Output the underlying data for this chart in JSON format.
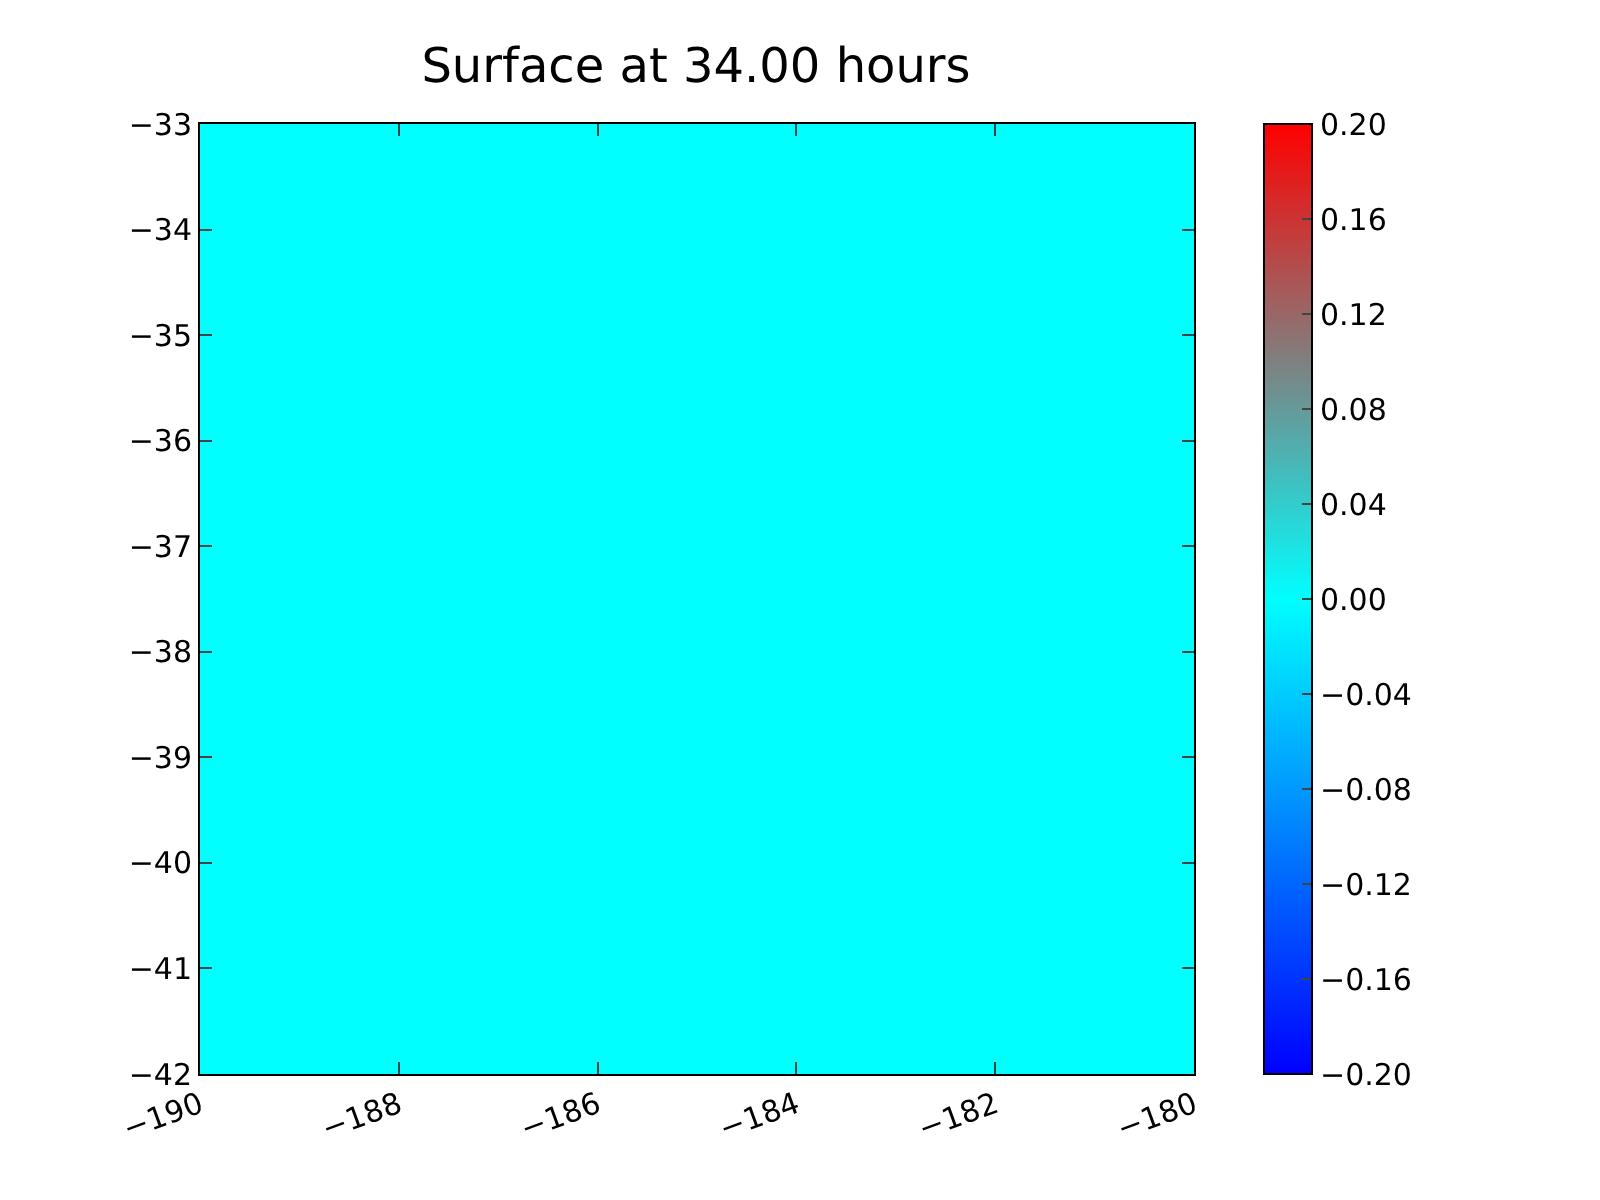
{
  "chart_data": {
    "type": "heatmap",
    "title": "Surface at 34.00 hours",
    "cells": [
      [
        0.0
      ]
    ],
    "xlim": [
      -190,
      -180
    ],
    "xticks": [
      -190,
      -188,
      -186,
      -184,
      -182,
      -180
    ],
    "ylim": [
      -42,
      -33
    ],
    "yticks": [
      -42,
      -41,
      -40,
      -39,
      -38,
      -37,
      -36,
      -35,
      -34,
      -33
    ],
    "clim": [
      -0.2,
      0.2
    ],
    "cticks": [
      {
        "value": -0.2,
        "label": "−0.20"
      },
      {
        "value": -0.16,
        "label": "−0.16"
      },
      {
        "value": -0.12,
        "label": "−0.12"
      },
      {
        "value": -0.08,
        "label": "−0.08"
      },
      {
        "value": -0.04,
        "label": "−0.04"
      },
      {
        "value": 0.0,
        "label": "0.00"
      },
      {
        "value": 0.04,
        "label": "0.04"
      },
      {
        "value": 0.08,
        "label": "0.08"
      },
      {
        "value": 0.12,
        "label": "0.12"
      },
      {
        "value": 0.16,
        "label": "0.16"
      },
      {
        "value": 0.2,
        "label": "0.20"
      }
    ]
  }
}
